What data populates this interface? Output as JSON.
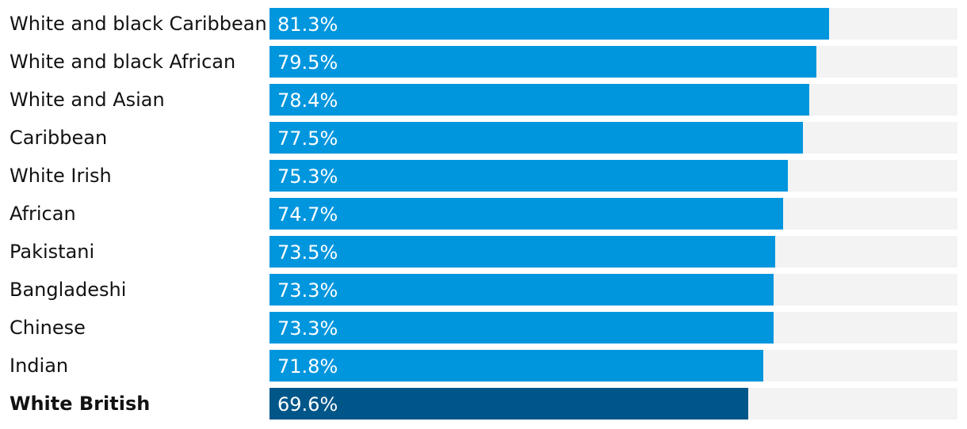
{
  "chart_data": {
    "type": "bar",
    "orientation": "horizontal",
    "title": "",
    "xlabel": "",
    "ylabel": "",
    "xlim": [
      0,
      100
    ],
    "value_suffix": "%",
    "grid": false,
    "categories": [
      "White and black Caribbean",
      "White and black African",
      "White and Asian",
      "Caribbean",
      "White Irish",
      "African",
      "Pakistani",
      "Bangladeshi",
      "Chinese",
      "Indian",
      "White British"
    ],
    "values": [
      81.3,
      79.5,
      78.4,
      77.5,
      75.3,
      74.7,
      73.5,
      73.3,
      73.3,
      71.8,
      69.6
    ],
    "value_labels": [
      "81.3%",
      "79.5%",
      "78.4%",
      "77.5%",
      "75.3%",
      "74.7%",
      "73.5%",
      "73.3%",
      "73.3%",
      "71.8%",
      "69.6%"
    ],
    "highlight_index": 10
  },
  "colors": {
    "bar": "#0096de",
    "highlight_bar": "#005689",
    "track": "#f3f3f3",
    "label_text": "#121212",
    "value_text": "#ffffff"
  }
}
